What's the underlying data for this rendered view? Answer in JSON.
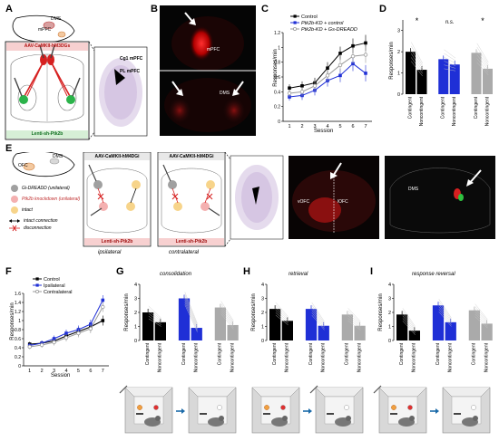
{
  "panels": {
    "A": {
      "letter": "A",
      "brain_labels": [
        "DMS",
        "mPFC"
      ],
      "virus_top": "AAV-CaMKII-hM3DGs",
      "virus_bottom": "Lenti-sh-Ptk2b",
      "section_labels": [
        "Cg1 mPFC",
        "PL mPFC"
      ]
    },
    "B": {
      "letter": "B",
      "labels": [
        "mPFC",
        "DMS"
      ]
    },
    "C": {
      "letter": "C",
      "ylabel": "Responses/min",
      "xlabel": "Session",
      "yticks": [
        "0",
        "0.2",
        "0.4",
        "0.6",
        "0.8",
        "1",
        "1.2"
      ],
      "xticks": [
        "1",
        "2",
        "3",
        "4",
        "5",
        "6",
        "7"
      ],
      "legend": [
        "Control",
        "Ptk2b-KD + control",
        "Ptk2b-KD + Gs-DREADD"
      ]
    },
    "D": {
      "letter": "D",
      "ylabel": "Responses/min",
      "yticks": [
        "0",
        "1",
        "2",
        "3"
      ],
      "annotations": [
        "*",
        "n.s.",
        "*"
      ],
      "xlabels": [
        "Contingent",
        "Noncontingent",
        "Contingent",
        "Noncontingent",
        "Contingent",
        "Noncontingent"
      ]
    },
    "E": {
      "letter": "E",
      "brain_labels": [
        "DMS",
        "OFC"
      ],
      "virus_top_1": "AAV-CaMKII-hM4DGi",
      "virus_top_2": "AAV-CaMKII-hM4DGi",
      "virus_bottom": "Lenti-sh-Ptk2b",
      "legend": [
        "Gi-DREADD (unilateral)",
        "Ptk2b knockdown (unilateral)",
        "intact",
        "intact connection",
        "disconnection"
      ],
      "conditions": [
        "ipsilateral",
        "contralateral"
      ],
      "image_labels": [
        "vOFC",
        "lOFC",
        "DMS"
      ]
    },
    "F": {
      "letter": "F",
      "ylabel": "Responses/min",
      "xlabel": "Session",
      "yticks": [
        "0",
        "0.2",
        "0.4",
        "0.6",
        "0.8",
        "1",
        "1.2",
        "1.4",
        "1.6"
      ],
      "xticks": [
        "1",
        "2",
        "3",
        "4",
        "5",
        "6",
        "7"
      ],
      "legend": [
        "Control",
        "Ipsilateral",
        "Contralateral"
      ]
    },
    "G": {
      "letter": "G",
      "title": "consolidation",
      "ylabel": "Responses/min",
      "yticks": [
        "0",
        "1",
        "2",
        "3",
        "4"
      ]
    },
    "H": {
      "letter": "H",
      "title": "retrieval",
      "ylabel": "Responses/min",
      "yticks": [
        "0",
        "1",
        "2",
        "3",
        "4"
      ]
    },
    "I": {
      "letter": "I",
      "title": "response reversal",
      "ylabel": "Responses/min",
      "yticks": [
        "0",
        "1",
        "2",
        "3",
        "4"
      ]
    },
    "bar_xlabels": [
      "Contingent",
      "Noncontingent",
      "Contingent",
      "Noncontingent",
      "Contingent",
      "Noncontingent"
    ]
  },
  "chart_data": [
    {
      "panel": "C",
      "type": "line",
      "x": [
        1,
        2,
        3,
        4,
        5,
        6,
        7
      ],
      "ylim": [
        0,
        1.2
      ],
      "xlabel": "Session",
      "ylabel": "Responses/min",
      "series": [
        {
          "name": "Control",
          "color": "#000000",
          "values": [
            0.45,
            0.48,
            0.52,
            0.72,
            0.92,
            1.02,
            1.06
          ]
        },
        {
          "name": "Ptk2b-KD + control",
          "color": "#1f2fd6",
          "values": [
            0.33,
            0.35,
            0.42,
            0.55,
            0.62,
            0.78,
            0.65
          ]
        },
        {
          "name": "Ptk2b-KD + Gs-DREADD",
          "color": "#9a9a9a",
          "values": [
            0.38,
            0.4,
            0.48,
            0.62,
            0.76,
            0.88,
            0.9
          ]
        }
      ]
    },
    {
      "panel": "D",
      "type": "bar",
      "ylim": [
        0,
        3.5
      ],
      "ylabel": "Responses/min",
      "categories": [
        "Contingent",
        "Noncontingent",
        "Contingent",
        "Noncontingent",
        "Contingent",
        "Noncontingent"
      ],
      "values": [
        2.0,
        1.15,
        1.65,
        1.4,
        1.95,
        1.2
      ],
      "colors": [
        "#000000",
        "#000000",
        "#1f2fd6",
        "#1f2fd6",
        "#aaaaaa",
        "#aaaaaa"
      ]
    },
    {
      "panel": "F",
      "type": "line",
      "x": [
        1,
        2,
        3,
        4,
        5,
        6,
        7
      ],
      "ylim": [
        0,
        1.6
      ],
      "xlabel": "Session",
      "ylabel": "Responses/min",
      "series": [
        {
          "name": "Control",
          "color": "#000000",
          "values": [
            0.48,
            0.5,
            0.55,
            0.66,
            0.76,
            0.86,
            1.0
          ]
        },
        {
          "name": "Ipsilateral",
          "color": "#1f2fd6",
          "values": [
            0.45,
            0.5,
            0.6,
            0.72,
            0.8,
            0.92,
            1.45
          ]
        },
        {
          "name": "Contralateral",
          "color": "#9a9a9a",
          "values": [
            0.42,
            0.46,
            0.52,
            0.62,
            0.72,
            0.82,
            1.3
          ]
        }
      ]
    },
    {
      "panel": "G",
      "type": "bar",
      "ylim": [
        0,
        4
      ],
      "categories": [
        "Contingent",
        "Noncontingent",
        "Contingent",
        "Noncontingent",
        "Contingent",
        "Noncontingent"
      ],
      "values": [
        2.0,
        1.3,
        3.0,
        0.9,
        2.35,
        1.1
      ],
      "colors": [
        "#000000",
        "#000000",
        "#1f2fd6",
        "#1f2fd6",
        "#aaaaaa",
        "#aaaaaa"
      ]
    },
    {
      "panel": "H",
      "type": "bar",
      "ylim": [
        0,
        4
      ],
      "categories": [
        "Contingent",
        "Noncontingent",
        "Contingent",
        "Noncontingent",
        "Contingent",
        "Noncontingent"
      ],
      "values": [
        2.25,
        1.4,
        2.25,
        1.05,
        1.85,
        1.05
      ],
      "colors": [
        "#000000",
        "#000000",
        "#1f2fd6",
        "#1f2fd6",
        "#aaaaaa",
        "#aaaaaa"
      ]
    },
    {
      "panel": "I",
      "type": "bar",
      "ylim": [
        0,
        4
      ],
      "categories": [
        "Contingent",
        "Noncontingent",
        "Contingent",
        "Noncontingent",
        "Contingent",
        "Noncontingent"
      ],
      "values": [
        1.85,
        0.7,
        2.5,
        1.3,
        2.15,
        1.2
      ],
      "colors": [
        "#000000",
        "#000000",
        "#1f2fd6",
        "#1f2fd6",
        "#aaaaaa",
        "#aaaaaa"
      ]
    }
  ]
}
